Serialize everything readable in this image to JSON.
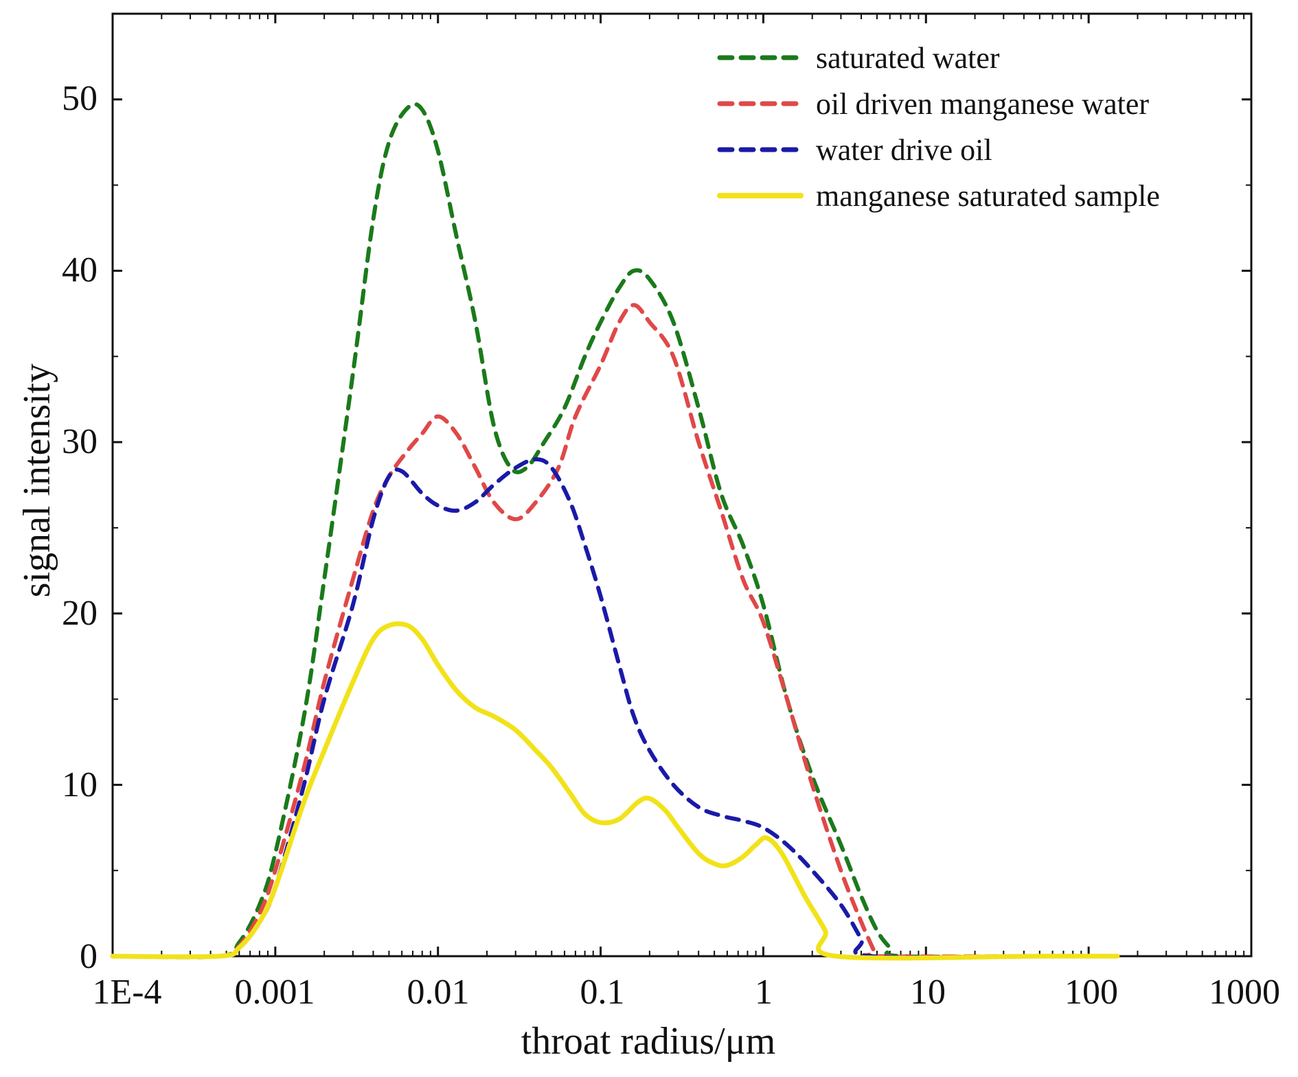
{
  "chart_data": {
    "type": "line",
    "xlabel": "throat radius/μm",
    "ylabel": "signal intensity",
    "x_scale": "log",
    "x_range": [
      0.0001,
      1000
    ],
    "y_range": [
      0,
      55
    ],
    "x_ticks": [
      {
        "value": 0.0001,
        "label": "1E-4"
      },
      {
        "value": 0.001,
        "label": "0.001"
      },
      {
        "value": 0.01,
        "label": "0.01"
      },
      {
        "value": 0.1,
        "label": "0.1"
      },
      {
        "value": 1,
        "label": "1"
      },
      {
        "value": 10,
        "label": "10"
      },
      {
        "value": 100,
        "label": "100"
      },
      {
        "value": 1000,
        "label": "1000"
      }
    ],
    "y_ticks": [
      {
        "value": 0,
        "label": "0"
      },
      {
        "value": 10,
        "label": "10"
      },
      {
        "value": 20,
        "label": "20"
      },
      {
        "value": 30,
        "label": "30"
      },
      {
        "value": 40,
        "label": "40"
      },
      {
        "value": 50,
        "label": "50"
      }
    ],
    "legend_position": "top-right",
    "series": [
      {
        "name": "saturated water",
        "color": "#1b7a1b",
        "dash": "dashed",
        "points": [
          [
            0.0001,
            0
          ],
          [
            0.00045,
            0
          ],
          [
            0.0006,
            0.8
          ],
          [
            0.0008,
            3
          ],
          [
            0.001,
            6
          ],
          [
            0.0015,
            14
          ],
          [
            0.002,
            22
          ],
          [
            0.003,
            34
          ],
          [
            0.004,
            43
          ],
          [
            0.005,
            47.5
          ],
          [
            0.0065,
            49.5
          ],
          [
            0.008,
            49.4
          ],
          [
            0.01,
            47
          ],
          [
            0.013,
            42
          ],
          [
            0.017,
            37
          ],
          [
            0.022,
            31
          ],
          [
            0.028,
            28.5
          ],
          [
            0.035,
            28.5
          ],
          [
            0.045,
            30
          ],
          [
            0.06,
            32
          ],
          [
            0.08,
            35
          ],
          [
            0.1,
            37
          ],
          [
            0.13,
            39
          ],
          [
            0.16,
            40
          ],
          [
            0.2,
            39.5
          ],
          [
            0.28,
            37
          ],
          [
            0.4,
            32
          ],
          [
            0.55,
            27
          ],
          [
            0.75,
            24
          ],
          [
            1,
            20.5
          ],
          [
            1.4,
            15
          ],
          [
            2,
            10.5
          ],
          [
            3,
            6.5
          ],
          [
            4,
            3.5
          ],
          [
            5,
            1.5
          ],
          [
            6,
            0.5
          ],
          [
            7,
            0
          ],
          [
            60,
            0
          ],
          [
            100,
            0
          ],
          [
            150,
            0
          ]
        ]
      },
      {
        "name": "oil driven manganese water",
        "color": "#e04848",
        "dash": "dashed",
        "points": [
          [
            0.0001,
            0
          ],
          [
            0.00045,
            0
          ],
          [
            0.0006,
            0.6
          ],
          [
            0.0008,
            2.5
          ],
          [
            0.001,
            5
          ],
          [
            0.0015,
            11
          ],
          [
            0.002,
            16
          ],
          [
            0.003,
            22
          ],
          [
            0.004,
            26
          ],
          [
            0.005,
            28
          ],
          [
            0.0065,
            29.5
          ],
          [
            0.008,
            30.5
          ],
          [
            0.01,
            31.5
          ],
          [
            0.013,
            30.5
          ],
          [
            0.017,
            28.5
          ],
          [
            0.022,
            26.5
          ],
          [
            0.03,
            25.5
          ],
          [
            0.04,
            26.5
          ],
          [
            0.055,
            28.5
          ],
          [
            0.07,
            31.5
          ],
          [
            0.1,
            34.5
          ],
          [
            0.13,
            37
          ],
          [
            0.16,
            38
          ],
          [
            0.2,
            37
          ],
          [
            0.28,
            35
          ],
          [
            0.4,
            30
          ],
          [
            0.55,
            26
          ],
          [
            0.75,
            22
          ],
          [
            1,
            19.5
          ],
          [
            1.4,
            15
          ],
          [
            2,
            10
          ],
          [
            3,
            5
          ],
          [
            4,
            2
          ],
          [
            4.8,
            0.3
          ],
          [
            5,
            0
          ],
          [
            60,
            0
          ],
          [
            100,
            0
          ],
          [
            150,
            0
          ]
        ]
      },
      {
        "name": "water drive oil",
        "color": "#1a1aa8",
        "dash": "dashed",
        "points": [
          [
            0.0001,
            0
          ],
          [
            0.00045,
            0
          ],
          [
            0.0006,
            0.5
          ],
          [
            0.0008,
            2
          ],
          [
            0.001,
            4
          ],
          [
            0.0015,
            10
          ],
          [
            0.002,
            15
          ],
          [
            0.003,
            20.5
          ],
          [
            0.004,
            25.5
          ],
          [
            0.005,
            28
          ],
          [
            0.006,
            28.3
          ],
          [
            0.008,
            27
          ],
          [
            0.01,
            26.3
          ],
          [
            0.013,
            26
          ],
          [
            0.017,
            26.5
          ],
          [
            0.022,
            27.5
          ],
          [
            0.03,
            28.5
          ],
          [
            0.04,
            29
          ],
          [
            0.05,
            28.5
          ],
          [
            0.065,
            26.5
          ],
          [
            0.08,
            24
          ],
          [
            0.1,
            21
          ],
          [
            0.13,
            17
          ],
          [
            0.16,
            14
          ],
          [
            0.2,
            12
          ],
          [
            0.28,
            10
          ],
          [
            0.4,
            8.7
          ],
          [
            0.55,
            8.2
          ],
          [
            0.75,
            7.9
          ],
          [
            1,
            7.5
          ],
          [
            1.4,
            6.5
          ],
          [
            2,
            5
          ],
          [
            3,
            3
          ],
          [
            4,
            1
          ],
          [
            4.6,
            0
          ],
          [
            60,
            0
          ],
          [
            100,
            0
          ],
          [
            150,
            0
          ]
        ]
      },
      {
        "name": "manganese saturated sample",
        "color": "#f2e21a",
        "dash": "solid",
        "points": [
          [
            0.0001,
            0
          ],
          [
            0.00045,
            0
          ],
          [
            0.0006,
            0.5
          ],
          [
            0.0008,
            2
          ],
          [
            0.001,
            4
          ],
          [
            0.0015,
            9
          ],
          [
            0.002,
            12
          ],
          [
            0.003,
            16
          ],
          [
            0.004,
            18.5
          ],
          [
            0.005,
            19.3
          ],
          [
            0.0065,
            19.3
          ],
          [
            0.008,
            18.5
          ],
          [
            0.01,
            17
          ],
          [
            0.013,
            15.5
          ],
          [
            0.017,
            14.5
          ],
          [
            0.022,
            14
          ],
          [
            0.03,
            13.2
          ],
          [
            0.04,
            12
          ],
          [
            0.05,
            11
          ],
          [
            0.065,
            9.5
          ],
          [
            0.08,
            8.3
          ],
          [
            0.1,
            7.8
          ],
          [
            0.13,
            8
          ],
          [
            0.17,
            9
          ],
          [
            0.2,
            9.2
          ],
          [
            0.25,
            8.5
          ],
          [
            0.3,
            7.5
          ],
          [
            0.4,
            6
          ],
          [
            0.5,
            5.4
          ],
          [
            0.6,
            5.3
          ],
          [
            0.75,
            5.8
          ],
          [
            0.9,
            6.5
          ],
          [
            1.05,
            6.9
          ],
          [
            1.3,
            6
          ],
          [
            1.8,
            3.5
          ],
          [
            2.4,
            1.5
          ],
          [
            2.8,
            0
          ],
          [
            50,
            0
          ],
          [
            150,
            0
          ]
        ]
      }
    ]
  }
}
